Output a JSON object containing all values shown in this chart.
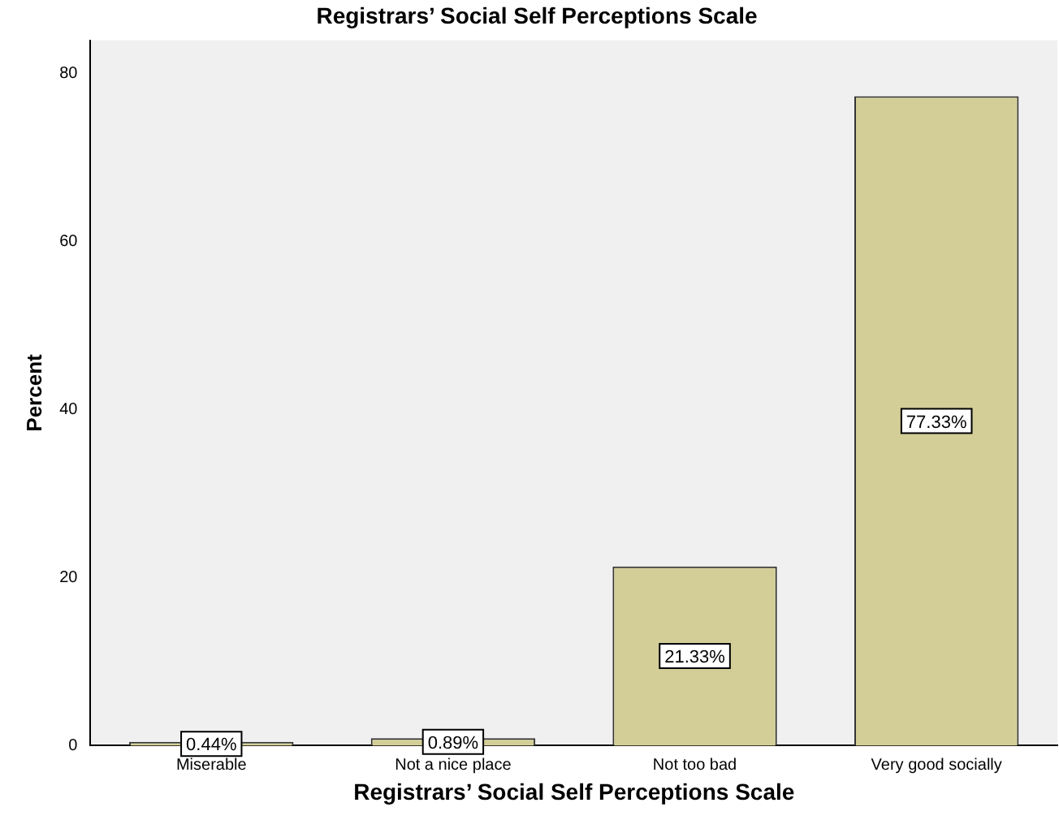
{
  "chart_data": {
    "type": "bar",
    "title": "Registrars’ Social Self Perceptions Scale",
    "xlabel": "Registrars’ Social Self Perceptions Scale",
    "ylabel": "Percent",
    "categories": [
      "Miserable",
      "Not a nice place",
      "Not too bad",
      "Very good socially"
    ],
    "values": [
      0.44,
      0.89,
      21.33,
      77.33
    ],
    "value_labels": [
      "0.44%",
      "0.89%",
      "21.33%",
      "77.33%"
    ],
    "color": "#d3ce97",
    "ylim": [
      0,
      84
    ],
    "yticks": [
      0,
      20,
      40,
      60,
      80
    ],
    "grid": false,
    "legend": false
  }
}
